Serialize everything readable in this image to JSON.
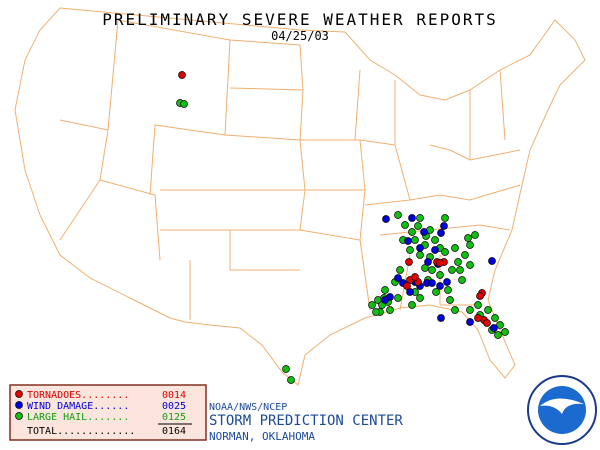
{
  "header": {
    "title": "PRELIMINARY SEVERE WEATHER REPORTS",
    "date": "04/25/03"
  },
  "legend": {
    "items": [
      {
        "label": "TORNADOES........",
        "count": "0014"
      },
      {
        "label": "WIND DAMAGE......",
        "count": "0025"
      },
      {
        "label": "LARGE HAIL.......",
        "count": "0125"
      }
    ],
    "total": {
      "label": "TOTAL.............",
      "count": "0164"
    }
  },
  "credits": {
    "agency": "NOAA/NWS/NCEP",
    "center": "STORM PREDICTION CENTER",
    "location": "NORMAN, OKLAHOMA"
  }
}
